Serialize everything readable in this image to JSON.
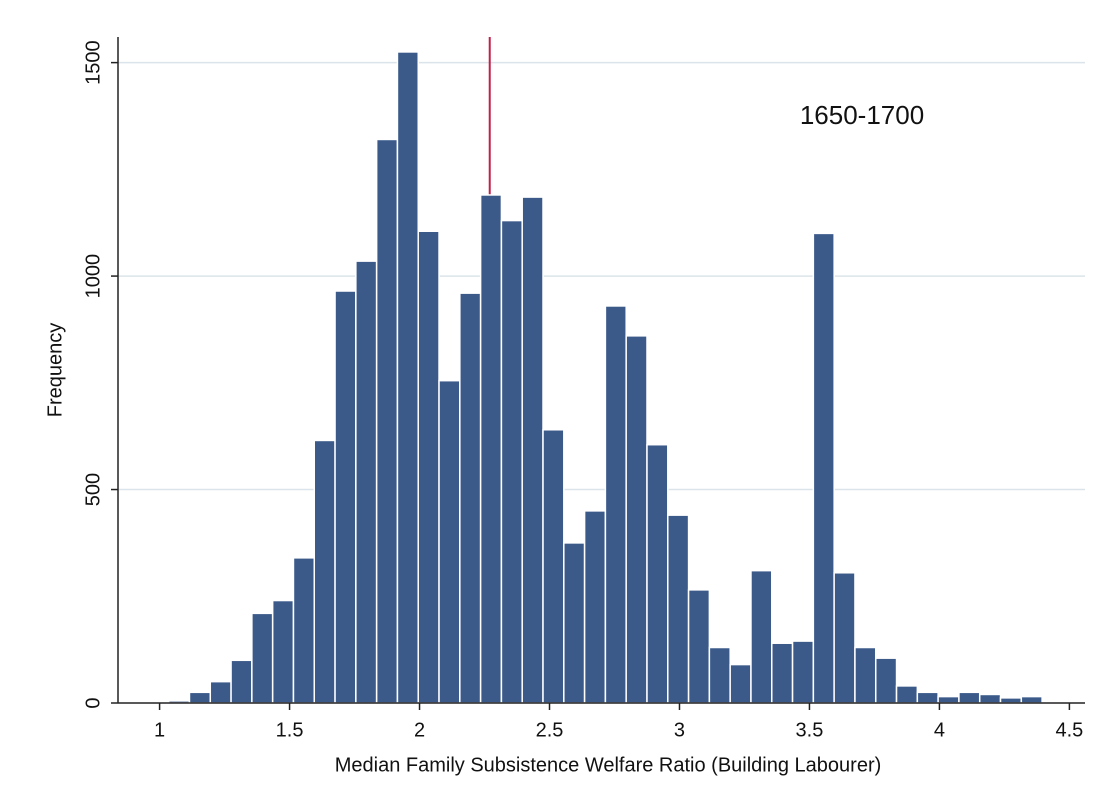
{
  "chart_data": {
    "type": "histogram",
    "xlabel": "Median Family Subsistence Welfare Ratio (Building Labourer)",
    "ylabel": "Frequency",
    "annotation": "1650-1700",
    "color": "#3b5a8a",
    "reference_line": 2.27,
    "reference_color": "#c0204a",
    "bins": [
      0.955,
      1.035,
      1.115,
      1.195,
      1.275,
      1.355,
      1.435,
      1.515,
      1.595,
      1.675,
      1.755,
      1.835,
      1.915,
      1.995,
      2.075,
      2.155,
      2.235,
      2.315,
      2.395,
      2.475,
      2.555,
      2.635,
      2.715,
      2.795,
      2.875,
      2.955,
      3.035,
      3.115,
      3.195,
      3.275,
      3.355,
      3.435,
      3.515,
      3.595,
      3.675,
      3.755,
      3.835,
      3.915,
      3.995,
      4.075,
      4.155,
      4.235,
      4.315,
      4.395
    ],
    "values": [
      2,
      5,
      25,
      50,
      100,
      210,
      240,
      340,
      615,
      965,
      1035,
      1320,
      1525,
      1105,
      755,
      960,
      1190,
      1130,
      1185,
      640,
      375,
      450,
      930,
      860,
      605,
      440,
      265,
      130,
      90,
      310,
      140,
      145,
      1100,
      305,
      130,
      105,
      40,
      25,
      15,
      25,
      20,
      12,
      15
    ],
    "xlim": [
      0.84,
      4.56
    ],
    "ylim": [
      0,
      1560
    ],
    "xticks": [
      1,
      1.5,
      2,
      2.5,
      3,
      3.5,
      4,
      4.5
    ],
    "yticks": [
      0,
      500,
      1000,
      1500
    ],
    "grid": true
  }
}
